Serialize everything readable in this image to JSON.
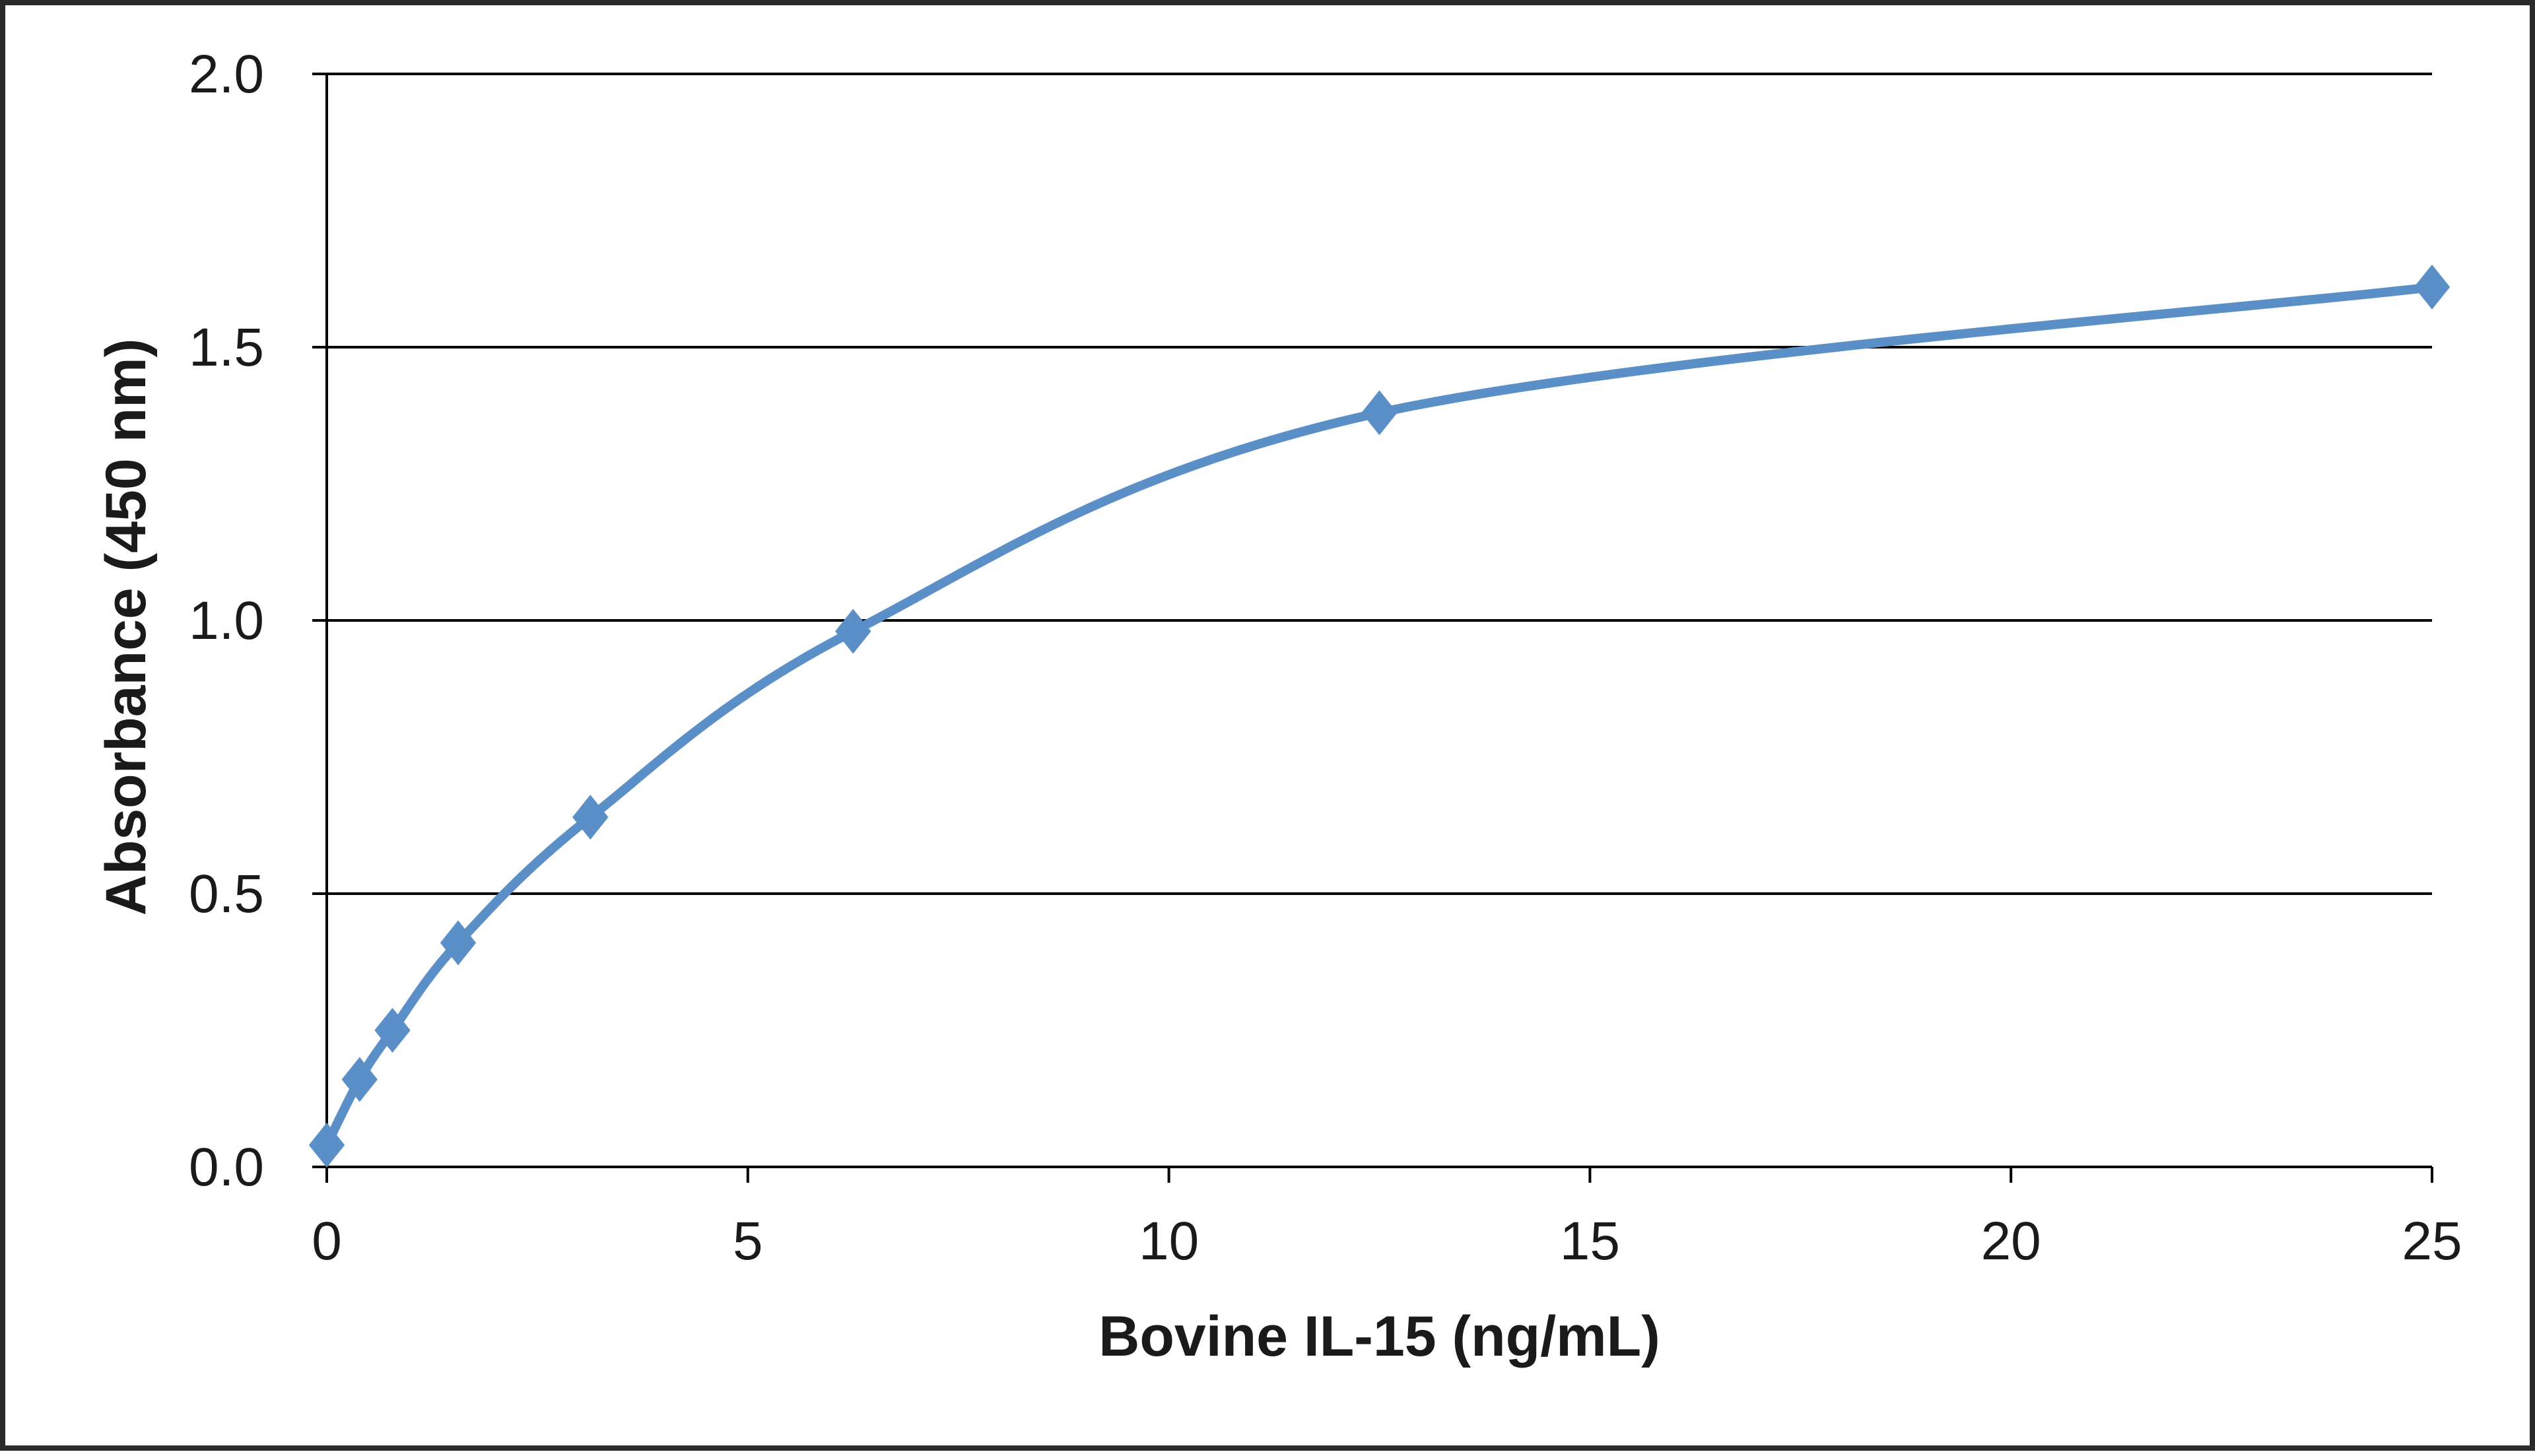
{
  "chart_data": {
    "type": "line",
    "title": "",
    "xlabel": "Bovine IL-15 (ng/mL)",
    "ylabel": "Absorbance  (450 nm)",
    "xlim": [
      0,
      25
    ],
    "ylim": [
      0,
      2.0
    ],
    "x_ticks": [
      "0",
      "5",
      "10",
      "15",
      "20",
      "25"
    ],
    "y_ticks": [
      "0.0",
      "0.5",
      "1.0",
      "1.5",
      "2.0"
    ],
    "grid": "horizontal",
    "legend": "none",
    "series": [
      {
        "marker": "diamond",
        "color": "#5b8fc7",
        "smooth": true,
        "points": [
          {
            "x": 0,
            "y": 0.04
          },
          {
            "x": 0.39,
            "y": 0.16
          },
          {
            "x": 0.78,
            "y": 0.25
          },
          {
            "x": 1.56,
            "y": 0.41
          },
          {
            "x": 3.13,
            "y": 0.64
          },
          {
            "x": 6.25,
            "y": 0.98
          },
          {
            "x": 12.5,
            "y": 1.38
          },
          {
            "x": 25,
            "y": 1.61
          }
        ]
      }
    ]
  }
}
